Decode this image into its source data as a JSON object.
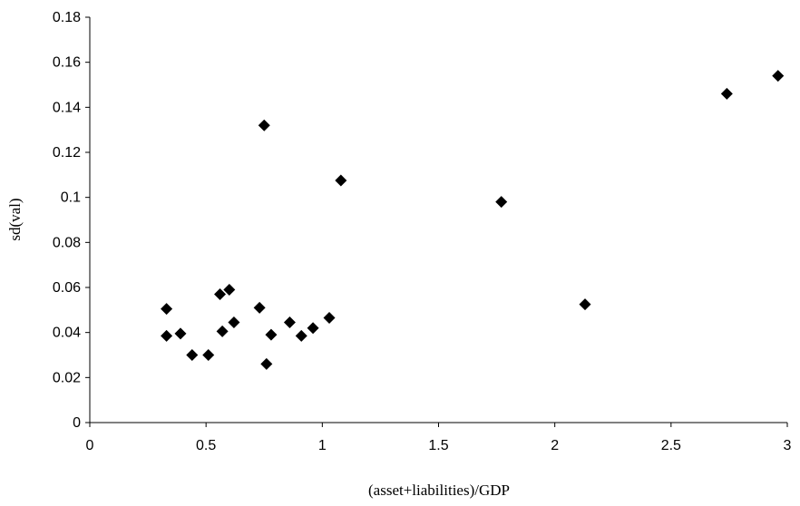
{
  "chart_data": {
    "type": "scatter",
    "title": "",
    "xlabel": "(asset+liabilities)/GDP",
    "ylabel": "sd(val)",
    "xlim": [
      0,
      3
    ],
    "ylim": [
      0,
      0.18
    ],
    "x_ticks": [
      "0",
      "0.5",
      "1",
      "1.5",
      "2",
      "2.5",
      "3"
    ],
    "y_ticks": [
      "0",
      "0.02",
      "0.04",
      "0.06",
      "0.08",
      "0.1",
      "0.12",
      "0.14",
      "0.16",
      "0.18"
    ],
    "marker": "diamond",
    "marker_color": "#000000",
    "grid": false,
    "legend": "none",
    "points": [
      {
        "x": 0.33,
        "y": 0.0505
      },
      {
        "x": 0.33,
        "y": 0.0385
      },
      {
        "x": 0.39,
        "y": 0.0395
      },
      {
        "x": 0.44,
        "y": 0.03
      },
      {
        "x": 0.51,
        "y": 0.03
      },
      {
        "x": 0.56,
        "y": 0.057
      },
      {
        "x": 0.57,
        "y": 0.0405
      },
      {
        "x": 0.6,
        "y": 0.059
      },
      {
        "x": 0.62,
        "y": 0.0445
      },
      {
        "x": 0.73,
        "y": 0.051
      },
      {
        "x": 0.75,
        "y": 0.132
      },
      {
        "x": 0.76,
        "y": 0.026
      },
      {
        "x": 0.78,
        "y": 0.039
      },
      {
        "x": 0.86,
        "y": 0.0445
      },
      {
        "x": 0.91,
        "y": 0.0385
      },
      {
        "x": 0.96,
        "y": 0.042
      },
      {
        "x": 1.03,
        "y": 0.0465
      },
      {
        "x": 1.08,
        "y": 0.1075
      },
      {
        "x": 1.77,
        "y": 0.098
      },
      {
        "x": 2.13,
        "y": 0.0525
      },
      {
        "x": 2.74,
        "y": 0.146
      },
      {
        "x": 2.96,
        "y": 0.154
      }
    ]
  }
}
